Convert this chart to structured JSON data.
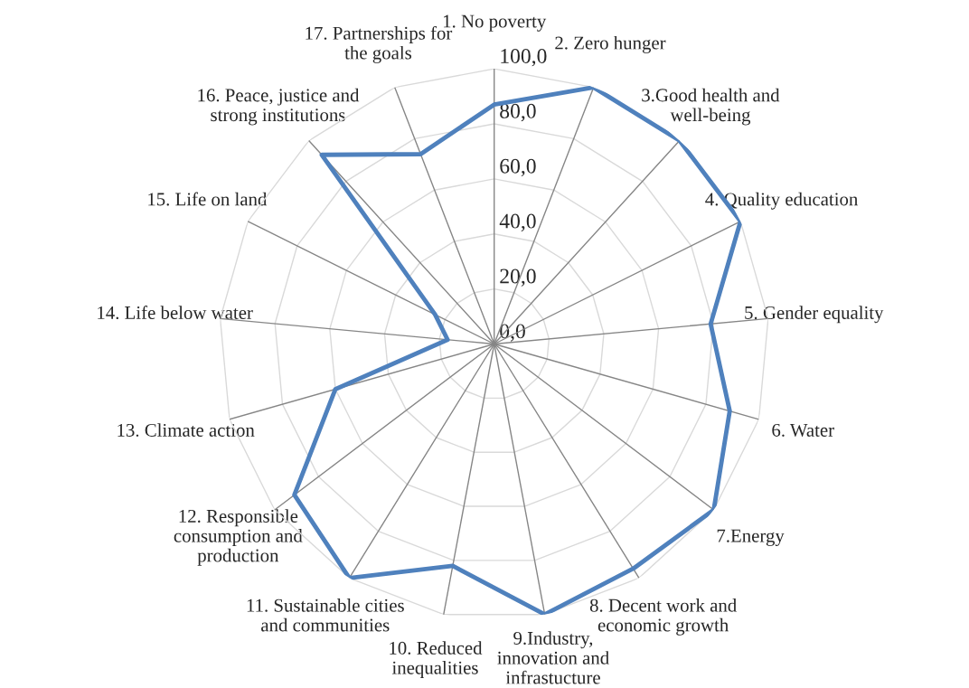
{
  "chart_data": {
    "type": "radar",
    "categories": [
      "1. No poverty",
      "2. Zero hunger",
      "3.Good health and\nwell-being",
      "4. Quality education",
      "5. Gender equality",
      "6. Water",
      "7.Energy",
      "8. Decent work and\neconomic growth",
      "9.Industry,\ninnovation and\ninfrastucture",
      "10. Reduced\ninequalities",
      "11. Sustainable cities\nand communities",
      "12. Responsible\nconsumption and\nproduction",
      "13. Climate action",
      "14. Life below water",
      "15. Life on land",
      "16. Peace, justice and\nstrong institutions",
      "17. Partnerships for\nthe goals"
    ],
    "series": [
      {
        "color": "#4f81bd",
        "values": [
          87,
          100,
          100,
          100,
          79,
          89,
          100,
          96,
          100,
          82,
          100,
          91,
          60,
          17,
          24,
          93,
          74
        ]
      }
    ],
    "ylim": [
      0,
      100
    ],
    "yticks": [
      {
        "value": 0,
        "label": "0,0"
      },
      {
        "value": 20,
        "label": "20,0"
      },
      {
        "value": 40,
        "label": "40,0"
      },
      {
        "value": 60,
        "label": "60,0"
      },
      {
        "value": 80,
        "label": "80,0"
      },
      {
        "value": 100,
        "label": "100,0"
      }
    ],
    "grid": true,
    "legend": false
  }
}
